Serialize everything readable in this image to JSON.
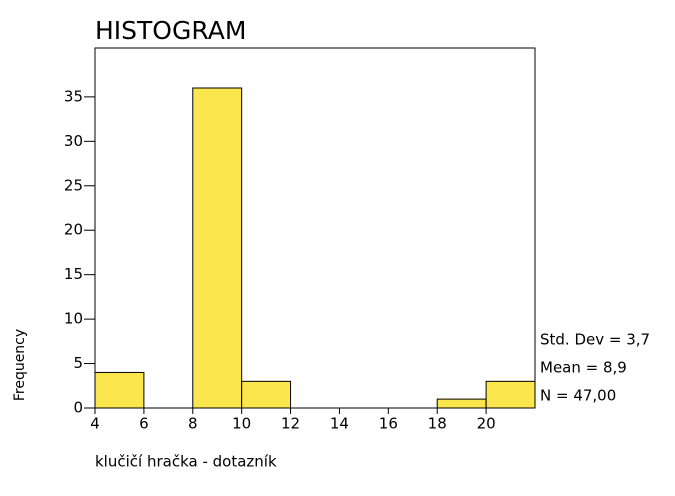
{
  "chart_data": {
    "type": "histogram",
    "title": "HISTOGRAM",
    "x_label": "klučičí hračka  - dotazník",
    "y_label": "Frequency",
    "bins": [
      4,
      6,
      8,
      10,
      12,
      14,
      16,
      18,
      20,
      22
    ],
    "values": [
      4,
      0,
      36,
      3,
      0,
      0,
      0,
      1,
      3
    ],
    "color": "#fbe64e",
    "xlim": [
      4,
      22
    ],
    "xticks": [
      4,
      6,
      8,
      10,
      12,
      14,
      16,
      18,
      20
    ],
    "ylim": [
      0,
      40.5
    ],
    "yticks": [
      0,
      5,
      10,
      15,
      20,
      25,
      30,
      35
    ],
    "annotations": [
      "Std. Dev = 3,7",
      "Mean = 8,9",
      "N = 47,00"
    ]
  }
}
